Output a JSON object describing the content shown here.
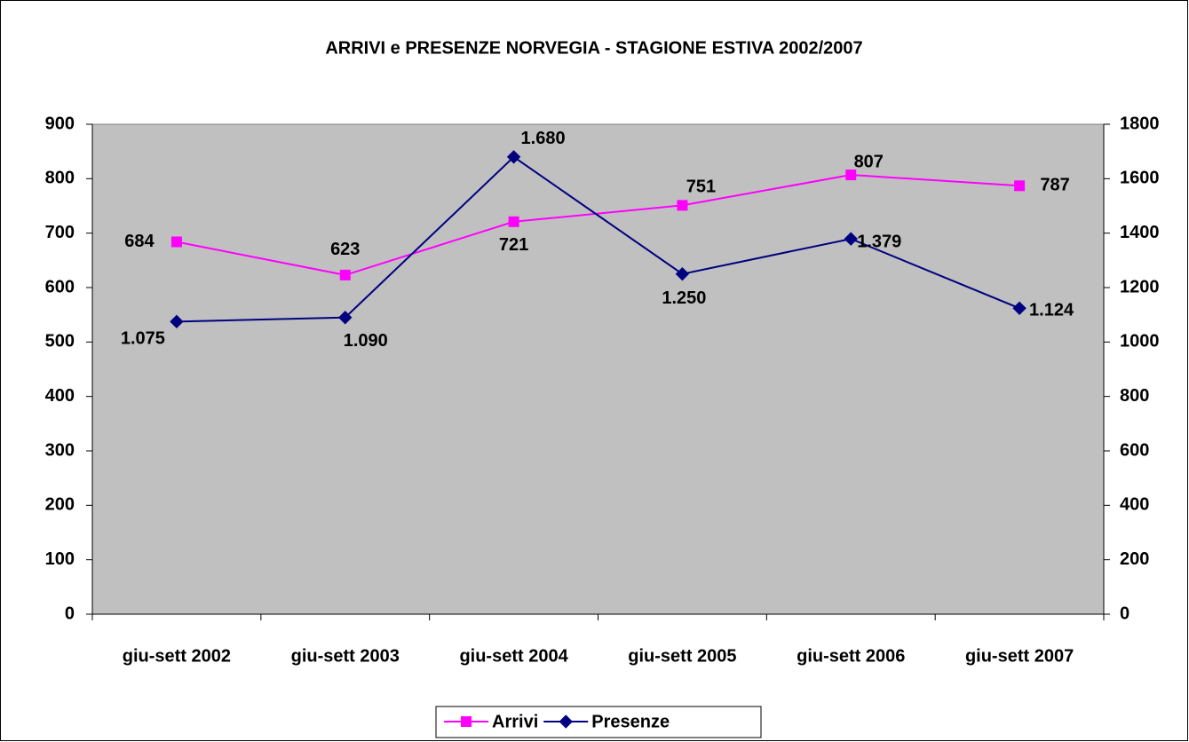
{
  "chart_data": {
    "type": "line",
    "title": "ARRIVI e PRESENZE NORVEGIA - STAGIONE ESTIVA 2002/2007",
    "categories": [
      "giu-sett 2002",
      "giu-sett 2003",
      "giu-sett 2004",
      "giu-sett 2005",
      "giu-sett 2006",
      "giu-sett 2007"
    ],
    "series": [
      {
        "name": "Arrivi",
        "color": "#ff00ff",
        "marker": "square",
        "values": [
          684,
          623,
          721,
          751,
          807,
          787
        ]
      },
      {
        "name": "Presenze",
        "color": "#000080",
        "marker": "diamond",
        "axis": "y2",
        "values": [
          1075,
          1090,
          1680,
          1250,
          1379,
          1124
        ],
        "value_labels": [
          "1.075",
          "1.090",
          "1.680",
          "1.250",
          "1.379",
          "1.124"
        ]
      }
    ],
    "ylim": [
      0,
      900
    ],
    "yticks": [
      0,
      100,
      200,
      300,
      400,
      500,
      600,
      700,
      800,
      900
    ],
    "y2lim": [
      0,
      1800
    ],
    "y2ticks": [
      0,
      200,
      400,
      600,
      800,
      1000,
      1200,
      1400,
      1600,
      1800
    ],
    "legend": "bottom"
  }
}
